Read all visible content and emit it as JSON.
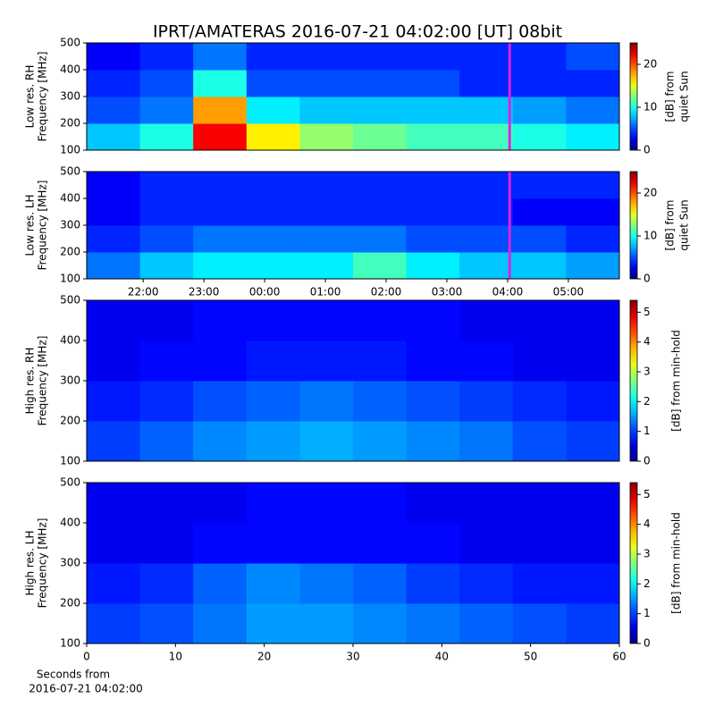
{
  "title": "IPRT/AMATERAS 2016-07-21 04:02:00 [UT]   08bit",
  "chart_data": [
    {
      "type": "heatmap",
      "ylabel": [
        "Low res. RH",
        "Frequency [MHz]"
      ],
      "colorbar_label": [
        "[dB] from",
        "quiet Sun"
      ],
      "colormap": "jet",
      "xlim": [
        21.07,
        29.84
      ],
      "ylim": [
        100,
        500
      ],
      "yticks": [
        100,
        200,
        300,
        400,
        500
      ],
      "clim": [
        0,
        25
      ],
      "cticks": [
        0,
        10,
        20
      ],
      "marker": 28.033,
      "marker_color": "#e020e0",
      "x_bins": [
        21.07,
        21.947,
        22.824,
        23.701,
        24.578,
        25.455,
        26.332,
        27.209,
        28.086,
        28.963,
        29.84
      ],
      "y_bins": [
        100,
        200,
        300,
        400,
        500
      ],
      "values": [
        [
          8,
          10,
          22,
          16,
          13,
          12,
          11,
          11,
          10,
          9
        ],
        [
          5,
          6,
          18,
          9,
          8,
          8,
          8,
          8,
          7,
          6
        ],
        [
          4,
          5,
          10,
          5,
          5,
          5,
          5,
          4,
          4,
          4
        ],
        [
          3,
          4,
          6,
          4,
          4,
          4,
          4,
          4,
          4,
          5
        ]
      ]
    },
    {
      "type": "heatmap",
      "ylabel": [
        "Low res. LH",
        "Frequency [MHz]"
      ],
      "colorbar_label": [
        "[dB] from",
        "quiet Sun"
      ],
      "colormap": "jet",
      "xlim": [
        21.07,
        29.84
      ],
      "ylim": [
        100,
        500
      ],
      "yticks": [
        100,
        200,
        300,
        400,
        500
      ],
      "xticks": [
        {
          "value": 22,
          "label": "22:00"
        },
        {
          "value": 23,
          "label": "23:00"
        },
        {
          "value": 24,
          "label": "00:00"
        },
        {
          "value": 25,
          "label": "01:00"
        },
        {
          "value": 26,
          "label": "02:00"
        },
        {
          "value": 27,
          "label": "03:00"
        },
        {
          "value": 28,
          "label": "04:00"
        },
        {
          "value": 29,
          "label": "05:00"
        }
      ],
      "clim": [
        0,
        25
      ],
      "cticks": [
        0,
        10,
        20
      ],
      "marker": 28.033,
      "marker_color": "#e020e0",
      "x_bins": [
        21.07,
        21.947,
        22.824,
        23.701,
        24.578,
        25.455,
        26.332,
        27.209,
        28.086,
        28.963,
        29.84
      ],
      "y_bins": [
        100,
        200,
        300,
        400,
        500
      ],
      "values": [
        [
          6,
          8,
          9,
          9,
          9,
          11,
          9,
          8,
          8,
          7
        ],
        [
          4,
          5,
          6,
          6,
          6,
          6,
          5,
          5,
          5,
          4
        ],
        [
          3,
          4,
          4,
          4,
          4,
          4,
          4,
          4,
          3,
          3
        ],
        [
          3,
          4,
          4,
          4,
          4,
          4,
          4,
          4,
          4,
          4
        ]
      ]
    },
    {
      "type": "heatmap",
      "ylabel": [
        "High res. RH",
        "Frequency [MHz]"
      ],
      "colorbar_label": [
        "[dB] from min-hold"
      ],
      "colormap": "jet",
      "xlim": [
        0,
        60
      ],
      "ylim": [
        100,
        500
      ],
      "yticks": [
        100,
        200,
        300,
        400,
        500
      ],
      "clim": [
        0,
        5.4
      ],
      "cticks": [
        0,
        1,
        2,
        3,
        4,
        5
      ],
      "x_bins": [
        0,
        6,
        12,
        18,
        24,
        30,
        36,
        42,
        48,
        54,
        60
      ],
      "y_bins": [
        100,
        200,
        300,
        400,
        500
      ],
      "values": [
        [
          1.0,
          1.2,
          1.4,
          1.5,
          1.6,
          1.5,
          1.4,
          1.3,
          1.1,
          1.0
        ],
        [
          0.8,
          0.9,
          1.1,
          1.2,
          1.3,
          1.2,
          1.1,
          1.0,
          0.9,
          0.8
        ],
        [
          0.6,
          0.7,
          0.7,
          0.8,
          0.8,
          0.8,
          0.7,
          0.7,
          0.6,
          0.6
        ],
        [
          0.6,
          0.6,
          0.7,
          0.7,
          0.7,
          0.7,
          0.7,
          0.6,
          0.6,
          0.6
        ]
      ]
    },
    {
      "type": "heatmap",
      "ylabel": [
        "High res. LH",
        "Frequency [MHz]"
      ],
      "colorbar_label": [
        "[dB] from min-hold"
      ],
      "xlabel": [
        "Seconds from",
        "2016-07-21 04:02:00"
      ],
      "colormap": "jet",
      "xlim": [
        0,
        60
      ],
      "ylim": [
        100,
        500
      ],
      "yticks": [
        100,
        200,
        300,
        400,
        500
      ],
      "xticks": [
        0,
        10,
        20,
        30,
        40,
        50,
        60
      ],
      "clim": [
        0,
        5.4
      ],
      "cticks": [
        0,
        1,
        2,
        3,
        4,
        5
      ],
      "x_bins": [
        0,
        6,
        12,
        18,
        24,
        30,
        36,
        42,
        48,
        54,
        60
      ],
      "y_bins": [
        100,
        200,
        300,
        400,
        500
      ],
      "values": [
        [
          1.0,
          1.1,
          1.3,
          1.5,
          1.5,
          1.4,
          1.3,
          1.2,
          1.1,
          1.0
        ],
        [
          0.8,
          0.9,
          1.2,
          1.4,
          1.3,
          1.2,
          1.0,
          0.9,
          0.8,
          0.8
        ],
        [
          0.6,
          0.6,
          0.7,
          0.7,
          0.7,
          0.7,
          0.7,
          0.6,
          0.6,
          0.6
        ],
        [
          0.6,
          0.6,
          0.6,
          0.7,
          0.7,
          0.7,
          0.6,
          0.6,
          0.6,
          0.6
        ]
      ]
    }
  ]
}
